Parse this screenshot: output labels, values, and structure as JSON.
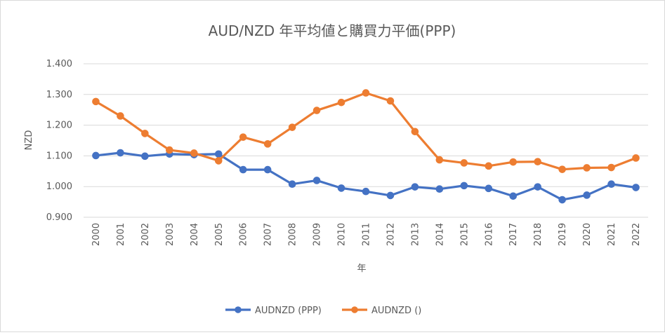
{
  "chart_data": {
    "type": "line",
    "title": "AUD/NZD  年平均値と購買力平価(PPP)",
    "xlabel": "年",
    "ylabel": "NZD",
    "ylim": [
      0.9,
      1.4
    ],
    "yticks": [
      "0.900",
      "1.000",
      "1.100",
      "1.200",
      "1.300",
      "1.400"
    ],
    "categories": [
      "2000",
      "2001",
      "2002",
      "2003",
      "2004",
      "2005",
      "2006",
      "2007",
      "2008",
      "2009",
      "2010",
      "2011",
      "2012",
      "2013",
      "2014",
      "2015",
      "2016",
      "2017",
      "2018",
      "2019",
      "2020",
      "2021",
      "2022"
    ],
    "grid": "horizontal",
    "legend_position": "bottom",
    "series": [
      {
        "name": "AUDNZD (PPP)",
        "color": "#4472c4",
        "values": [
          1.101,
          1.11,
          1.099,
          1.106,
          1.104,
          1.106,
          1.055,
          1.055,
          1.008,
          1.02,
          0.995,
          0.984,
          0.971,
          0.999,
          0.992,
          1.003,
          0.994,
          0.969,
          0.999,
          0.957,
          0.972,
          1.008,
          0.997
        ]
      },
      {
        "name": "AUDNZD ()",
        "color": "#ed7d31",
        "values": [
          1.277,
          1.23,
          1.173,
          1.119,
          1.109,
          1.084,
          1.161,
          1.139,
          1.193,
          1.248,
          1.274,
          1.305,
          1.279,
          1.179,
          1.087,
          1.077,
          1.067,
          1.08,
          1.081,
          1.056,
          1.061,
          1.062,
          1.093
        ]
      }
    ]
  }
}
